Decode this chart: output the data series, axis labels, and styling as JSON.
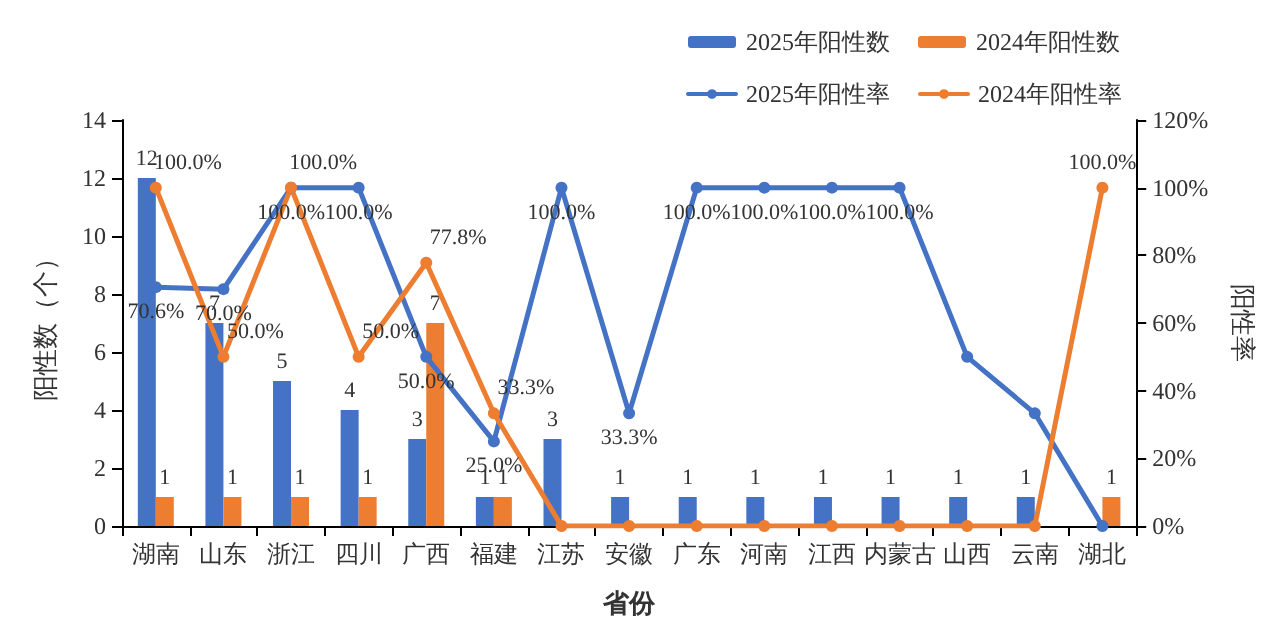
{
  "chart_data": {
    "type": "bar",
    "xlabel": "省份",
    "ylabel": "阳性数（个）",
    "y2label": "阳性率",
    "categories": [
      "湖南",
      "山东",
      "浙江",
      "四川",
      "广西",
      "福建",
      "江苏",
      "安徽",
      "广东",
      "河南",
      "江西",
      "内蒙古",
      "山西",
      "云南",
      "湖北"
    ],
    "series": [
      {
        "name": "2025年阳性数",
        "color": "#4472c4",
        "values": [
          12,
          7,
          5,
          4,
          3,
          1,
          3,
          1,
          1,
          1,
          1,
          1,
          1,
          1,
          null
        ],
        "value_labels": [
          "12",
          "7",
          "5",
          "4",
          "3",
          "1",
          "3",
          "1",
          "1",
          "1",
          "1",
          "1",
          "1",
          "1",
          null
        ]
      },
      {
        "name": "2024年阳性数",
        "color": "#ed7d31",
        "values": [
          1,
          1,
          1,
          1,
          7,
          1,
          null,
          null,
          null,
          null,
          null,
          null,
          null,
          null,
          1
        ],
        "value_labels": [
          "1",
          "1",
          "1",
          "1",
          "7",
          "1",
          null,
          null,
          null,
          null,
          null,
          null,
          null,
          null,
          "1"
        ]
      },
      {
        "name": "2025年阳性率",
        "type": "line",
        "axis": "y2",
        "color": "#4472c4",
        "values": [
          70.6,
          70.0,
          100,
          100,
          50,
          25,
          100,
          33.3,
          100,
          100,
          100,
          100,
          50,
          33.3,
          0
        ],
        "value_labels": [
          "70.6%",
          "70.0%",
          "100.0%",
          "100.0%",
          "50.0%",
          "25.0%",
          "100.0%",
          "33.3%",
          "100.0%",
          "100.0%",
          "100.0%",
          "100.0%",
          null,
          null,
          null
        ]
      },
      {
        "name": "2024年阳性率",
        "type": "line",
        "axis": "y2",
        "color": "#ed7d31",
        "values": [
          100,
          50,
          100,
          50,
          77.8,
          33.3,
          0,
          0,
          0,
          0,
          0,
          0,
          0,
          0,
          100
        ],
        "value_labels": [
          "100.0%",
          "50.0%",
          "100.0%",
          "50.0%",
          "77.8%",
          "33.3%",
          null,
          null,
          null,
          null,
          null,
          null,
          null,
          null,
          "100.0%"
        ]
      }
    ],
    "ylim": [
      0,
      14
    ],
    "yticks": [
      0,
      2,
      4,
      6,
      8,
      10,
      12,
      14
    ],
    "y2lim": [
      0,
      120
    ],
    "y2ticks": [
      {
        "value": 0,
        "label": "0%"
      },
      {
        "value": 20,
        "label": "20%"
      },
      {
        "value": 40,
        "label": "40%"
      },
      {
        "value": 60,
        "label": "60%"
      },
      {
        "value": 80,
        "label": "80%"
      },
      {
        "value": 100,
        "label": "100%"
      },
      {
        "value": 120,
        "label": "120%"
      }
    ],
    "legend": "top right",
    "grid": false,
    "marker": "circle",
    "line_style": "solid"
  }
}
